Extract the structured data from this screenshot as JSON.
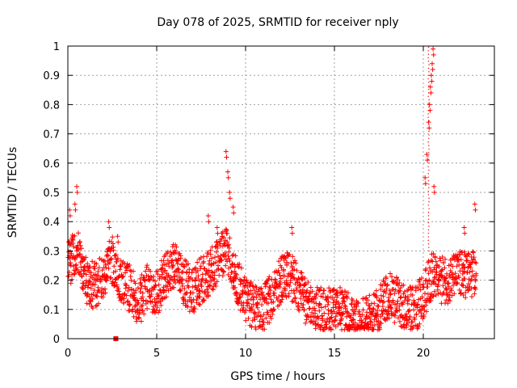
{
  "chart_data": {
    "type": "scatter",
    "title": "Day 078 of 2025, SRMTID for receiver nply",
    "xlabel": "GPS time / hours",
    "ylabel": "SRMTID / TECUs",
    "xlim": [
      0,
      24
    ],
    "ylim": [
      0,
      1
    ],
    "xticks": [
      0,
      5,
      10,
      15,
      20
    ],
    "xtick_labels": [
      "0",
      "5",
      "10",
      "15",
      "20"
    ],
    "yticks": [
      0,
      0.1,
      0.2,
      0.3,
      0.4,
      0.5,
      0.6,
      0.7,
      0.8,
      0.9,
      1
    ],
    "ytick_labels": [
      "0",
      "0.1",
      "0.2",
      "0.3",
      "0.4",
      "0.5",
      "0.6",
      "0.7",
      "0.8",
      "0.9",
      "1"
    ],
    "grid": true,
    "marker": "+",
    "color": "#ff0000",
    "baseline": [
      [
        0.0,
        0.25
      ],
      [
        0.5,
        0.3
      ],
      [
        1.0,
        0.2
      ],
      [
        1.5,
        0.18
      ],
      [
        2.0,
        0.22
      ],
      [
        2.5,
        0.27
      ],
      [
        3.0,
        0.2
      ],
      [
        3.5,
        0.17
      ],
      [
        4.0,
        0.12
      ],
      [
        4.5,
        0.18
      ],
      [
        5.0,
        0.15
      ],
      [
        5.5,
        0.22
      ],
      [
        6.0,
        0.25
      ],
      [
        6.5,
        0.2
      ],
      [
        7.0,
        0.16
      ],
      [
        7.5,
        0.2
      ],
      [
        8.0,
        0.22
      ],
      [
        8.5,
        0.28
      ],
      [
        9.0,
        0.3
      ],
      [
        9.5,
        0.2
      ],
      [
        10.0,
        0.14
      ],
      [
        10.5,
        0.1
      ],
      [
        11.0,
        0.1
      ],
      [
        11.5,
        0.15
      ],
      [
        12.0,
        0.2
      ],
      [
        12.5,
        0.22
      ],
      [
        13.0,
        0.16
      ],
      [
        13.5,
        0.12
      ],
      [
        14.0,
        0.1
      ],
      [
        14.5,
        0.09
      ],
      [
        15.0,
        0.1
      ],
      [
        15.5,
        0.1
      ],
      [
        16.0,
        0.06
      ],
      [
        16.5,
        0.06
      ],
      [
        17.0,
        0.07
      ],
      [
        17.5,
        0.1
      ],
      [
        18.0,
        0.15
      ],
      [
        18.5,
        0.13
      ],
      [
        19.0,
        0.1
      ],
      [
        19.5,
        0.1
      ],
      [
        20.0,
        0.14
      ],
      [
        20.5,
        0.22
      ],
      [
        21.0,
        0.2
      ],
      [
        21.5,
        0.2
      ],
      [
        22.0,
        0.22
      ],
      [
        22.5,
        0.22
      ],
      [
        23.0,
        0.22
      ]
    ],
    "spikes": [
      {
        "x": 0.1,
        "y": 0.44
      },
      {
        "x": 0.4,
        "y": 0.46
      },
      {
        "x": 0.5,
        "y": 0.52
      },
      {
        "x": 2.3,
        "y": 0.4
      },
      {
        "x": 2.8,
        "y": 0.35
      },
      {
        "x": 7.9,
        "y": 0.42
      },
      {
        "x": 8.4,
        "y": 0.38
      },
      {
        "x": 8.9,
        "y": 0.64
      },
      {
        "x": 9.0,
        "y": 0.57
      },
      {
        "x": 9.1,
        "y": 0.5
      },
      {
        "x": 9.3,
        "y": 0.45
      },
      {
        "x": 12.6,
        "y": 0.38
      },
      {
        "x": 20.1,
        "y": 0.55
      },
      {
        "x": 20.2,
        "y": 0.63
      },
      {
        "x": 20.3,
        "y": 0.74
      },
      {
        "x": 20.35,
        "y": 0.8
      },
      {
        "x": 20.4,
        "y": 0.86
      },
      {
        "x": 20.45,
        "y": 0.9
      },
      {
        "x": 20.5,
        "y": 0.94
      },
      {
        "x": 20.55,
        "y": 0.99
      },
      {
        "x": 20.6,
        "y": 0.52
      },
      {
        "x": 22.3,
        "y": 0.38
      },
      {
        "x": 22.9,
        "y": 0.46
      }
    ],
    "outlier_marker": {
      "x": 2.7,
      "y": 0.0
    }
  }
}
